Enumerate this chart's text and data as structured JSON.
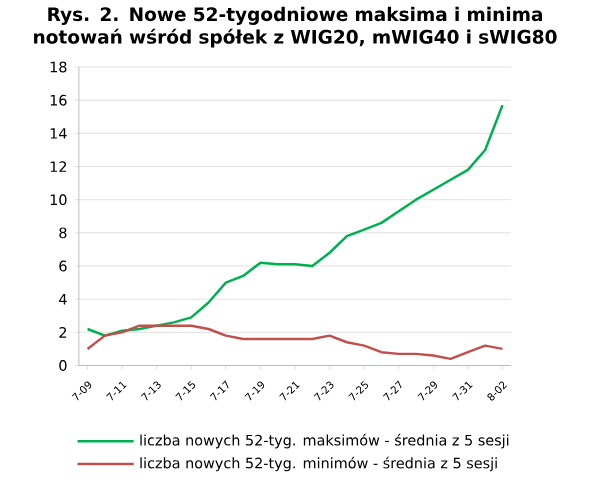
{
  "chart_data": {
    "type": "line",
    "title": "Rys. 2. Nowe 52-tygodniowe maksima i minima notowań wśród spółek z WIG20, mWIG40 i sWIG80",
    "categories": [
      "7-09",
      null,
      "7-11",
      null,
      "7-13",
      null,
      "7-15",
      null,
      "7-17",
      null,
      "7-19",
      null,
      "7-21",
      null,
      "7-23",
      null,
      "7-25",
      null,
      "7-27",
      null,
      "7-29",
      null,
      "7-31",
      null,
      "8-02"
    ],
    "series": [
      {
        "name": "liczba nowych 52-tyg. maksimów - średnia z 5 sesji",
        "color": "#00b050",
        "values": [
          2.2,
          1.8,
          2.1,
          2.2,
          2.4,
          2.6,
          2.9,
          3.8,
          5.0,
          5.4,
          6.2,
          6.1,
          6.1,
          6.0,
          6.8,
          7.8,
          8.2,
          8.6,
          9.3,
          10.0,
          10.6,
          11.2,
          11.8,
          13.0,
          15.7
        ]
      },
      {
        "name": "liczba nowych 52-tyg. minimów - średnia z 5 sesji",
        "color": "#c0504d",
        "values": [
          1.0,
          1.8,
          2.0,
          2.4,
          2.4,
          2.4,
          2.4,
          2.2,
          1.8,
          1.6,
          1.6,
          1.6,
          1.6,
          1.6,
          1.8,
          1.4,
          1.2,
          0.8,
          0.7,
          0.7,
          0.6,
          0.4,
          0.8,
          1.2,
          1.0
        ]
      }
    ],
    "ylim": [
      0,
      18
    ],
    "yticks": [
      0,
      2,
      4,
      6,
      8,
      10,
      12,
      14,
      16,
      18
    ],
    "grid": "y",
    "legend": "bottom",
    "marker": "none",
    "line_style": "solid"
  }
}
